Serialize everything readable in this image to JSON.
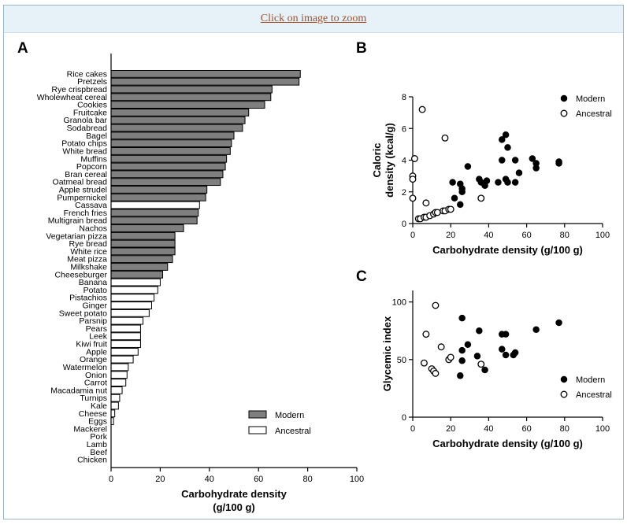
{
  "zoom_link": "Click on image to zoom",
  "colors": {
    "modern": "#7f7f7f",
    "ancestral": "#ffffff",
    "dot": "#000000"
  },
  "chart_data": [
    {
      "panel": "A",
      "type": "bar",
      "orientation": "horizontal",
      "xlabel_line1": "Carbohydrate density",
      "xlabel_line2": "(g/100 g)",
      "xlim": [
        0,
        100
      ],
      "xticks": [
        0,
        20,
        40,
        60,
        80,
        100
      ],
      "legend": [
        {
          "name": "Modern",
          "fill": "#7f7f7f"
        },
        {
          "name": "Ancestral",
          "fill": "#ffffff"
        }
      ],
      "categories": [
        {
          "name": "Rice cakes",
          "value": 77,
          "group": "Modern"
        },
        {
          "name": "Pretzels",
          "value": 76.5,
          "group": "Modern"
        },
        {
          "name": "Rye crispbread",
          "value": 65.5,
          "group": "Modern"
        },
        {
          "name": "Wholewheat cereal",
          "value": 65,
          "group": "Modern"
        },
        {
          "name": "Cookies",
          "value": 62.5,
          "group": "Modern"
        },
        {
          "name": "Fruitcake",
          "value": 56,
          "group": "Modern"
        },
        {
          "name": "Granola bar",
          "value": 54.5,
          "group": "Modern"
        },
        {
          "name": "Sodabread",
          "value": 53.5,
          "group": "Modern"
        },
        {
          "name": "Bagel",
          "value": 50,
          "group": "Modern"
        },
        {
          "name": "Potato chips",
          "value": 49,
          "group": "Modern"
        },
        {
          "name": "White bread",
          "value": 48.5,
          "group": "Modern"
        },
        {
          "name": "Muffins",
          "value": 47,
          "group": "Modern"
        },
        {
          "name": "Popcorn",
          "value": 46.5,
          "group": "Modern"
        },
        {
          "name": "Bran cereal",
          "value": 45.5,
          "group": "Modern"
        },
        {
          "name": "Oatmeal bread",
          "value": 44.5,
          "group": "Modern"
        },
        {
          "name": "Apple strudel",
          "value": 39,
          "group": "Modern"
        },
        {
          "name": "Pumpernickel",
          "value": 38.5,
          "group": "Modern"
        },
        {
          "name": "Cassava",
          "value": 36,
          "group": "Ancestral"
        },
        {
          "name": "French fries",
          "value": 35.5,
          "group": "Modern"
        },
        {
          "name": "Multigrain bread",
          "value": 35,
          "group": "Modern"
        },
        {
          "name": "Nachos",
          "value": 29.5,
          "group": "Modern"
        },
        {
          "name": "Vegetarian pizza",
          "value": 26,
          "group": "Modern"
        },
        {
          "name": "Rye bread",
          "value": 26,
          "group": "Modern"
        },
        {
          "name": "White rice",
          "value": 26,
          "group": "Modern"
        },
        {
          "name": "Meat pizza",
          "value": 25,
          "group": "Modern"
        },
        {
          "name": "Milkshake",
          "value": 23,
          "group": "Modern"
        },
        {
          "name": "Cheeseburger",
          "value": 21,
          "group": "Modern"
        },
        {
          "name": "Banana",
          "value": 20,
          "group": "Ancestral"
        },
        {
          "name": "Potato",
          "value": 19,
          "group": "Ancestral"
        },
        {
          "name": "Pistachios",
          "value": 17.5,
          "group": "Ancestral"
        },
        {
          "name": "Ginger",
          "value": 16.5,
          "group": "Ancestral"
        },
        {
          "name": "Sweet potato",
          "value": 15.5,
          "group": "Ancestral"
        },
        {
          "name": "Parsnip",
          "value": 13,
          "group": "Ancestral"
        },
        {
          "name": "Pears",
          "value": 12,
          "group": "Ancestral"
        },
        {
          "name": "Leek",
          "value": 12,
          "group": "Ancestral"
        },
        {
          "name": "Kiwi fruit",
          "value": 12,
          "group": "Ancestral"
        },
        {
          "name": "Apple",
          "value": 11,
          "group": "Ancestral"
        },
        {
          "name": "Orange",
          "value": 9,
          "group": "Ancestral"
        },
        {
          "name": "Watermelon",
          "value": 7,
          "group": "Ancestral"
        },
        {
          "name": "Onion",
          "value": 6.5,
          "group": "Ancestral"
        },
        {
          "name": "Carrot",
          "value": 6,
          "group": "Ancestral"
        },
        {
          "name": "Macadamia nut",
          "value": 4.5,
          "group": "Ancestral"
        },
        {
          "name": "Turnips",
          "value": 3.5,
          "group": "Ancestral"
        },
        {
          "name": "Kale",
          "value": 3,
          "group": "Ancestral"
        },
        {
          "name": "Cheese",
          "value": 1.5,
          "group": "Ancestral"
        },
        {
          "name": "Eggs",
          "value": 1,
          "group": "Ancestral"
        },
        {
          "name": "Mackerel",
          "value": 0,
          "group": "Ancestral"
        },
        {
          "name": "Pork",
          "value": 0,
          "group": "Ancestral"
        },
        {
          "name": "Lamb",
          "value": 0,
          "group": "Ancestral"
        },
        {
          "name": "Beef",
          "value": 0,
          "group": "Ancestral"
        },
        {
          "name": "Chicken",
          "value": 0,
          "group": "Ancestral"
        }
      ]
    },
    {
      "panel": "B",
      "type": "scatter",
      "xlabel": "Carbohydrate density (g/100 g)",
      "ylabel_line1": "Caloric",
      "ylabel_line2": "density (kcal/g)",
      "xlim": [
        0,
        100
      ],
      "ylim": [
        0,
        8
      ],
      "xticks": [
        0,
        20,
        40,
        60,
        80,
        100
      ],
      "yticks": [
        0,
        2,
        4,
        6,
        8
      ],
      "legend_position": "top-right",
      "series": [
        {
          "name": "Modern",
          "marker": "filled",
          "points": [
            [
              21,
              2.6
            ],
            [
              25,
              2.5
            ],
            [
              26,
              2.2
            ],
            [
              26,
              2.0
            ],
            [
              25,
              1.2
            ],
            [
              22,
              1.6
            ],
            [
              29,
              3.6
            ],
            [
              35,
              2.8
            ],
            [
              36,
              2.6
            ],
            [
              38,
              2.4
            ],
            [
              39,
              2.7
            ],
            [
              45,
              2.6
            ],
            [
              47,
              4.0
            ],
            [
              49,
              2.8
            ],
            [
              50,
              2.6
            ],
            [
              47,
              5.3
            ],
            [
              49,
              5.6
            ],
            [
              50,
              4.8
            ],
            [
              54,
              2.6
            ],
            [
              54,
              4.0
            ],
            [
              56,
              3.2
            ],
            [
              63,
              4.1
            ],
            [
              65,
              3.5
            ],
            [
              65,
              3.8
            ],
            [
              77,
              3.9
            ],
            [
              77,
              3.8
            ]
          ]
        },
        {
          "name": "Ancestral",
          "marker": "open",
          "points": [
            [
              0,
              3.0
            ],
            [
              0,
              2.8
            ],
            [
              0,
              1.6
            ],
            [
              1,
              4.1
            ],
            [
              5,
              7.2
            ],
            [
              7,
              1.3
            ],
            [
              3,
              0.3
            ],
            [
              4,
              0.3
            ],
            [
              6,
              0.4
            ],
            [
              7,
              0.4
            ],
            [
              9,
              0.5
            ],
            [
              11,
              0.6
            ],
            [
              12,
              0.7
            ],
            [
              13,
              0.7
            ],
            [
              16,
              0.8
            ],
            [
              17,
              0.8
            ],
            [
              19,
              0.9
            ],
            [
              20,
              0.9
            ],
            [
              17,
              5.4
            ],
            [
              36,
              1.6
            ]
          ]
        }
      ]
    },
    {
      "panel": "C",
      "type": "scatter",
      "xlabel": "Carbohydrate density (g/100 g)",
      "ylabel": "Glycemic index",
      "xlim": [
        0,
        100
      ],
      "ylim": [
        0,
        110
      ],
      "xticks": [
        0,
        20,
        40,
        60,
        80,
        100
      ],
      "yticks": [
        0,
        50,
        100
      ],
      "legend_position": "bottom-right",
      "series": [
        {
          "name": "Modern",
          "marker": "filled",
          "points": [
            [
              25,
              36
            ],
            [
              26,
              49
            ],
            [
              26,
              58
            ],
            [
              26,
              86
            ],
            [
              29,
              63
            ],
            [
              34,
              53
            ],
            [
              35,
              75
            ],
            [
              38,
              41
            ],
            [
              47,
              72
            ],
            [
              47,
              59
            ],
            [
              49,
              54
            ],
            [
              49,
              72
            ],
            [
              53,
              54
            ],
            [
              54,
              56
            ],
            [
              65,
              76
            ],
            [
              77,
              82
            ]
          ]
        },
        {
          "name": "Ancestral",
          "marker": "open",
          "points": [
            [
              6,
              47
            ],
            [
              7,
              72
            ],
            [
              10,
              42
            ],
            [
              11,
              40
            ],
            [
              12,
              38
            ],
            [
              12,
              97
            ],
            [
              15,
              61
            ],
            [
              19,
              50
            ],
            [
              20,
              52
            ],
            [
              36,
              46
            ]
          ]
        }
      ]
    }
  ]
}
